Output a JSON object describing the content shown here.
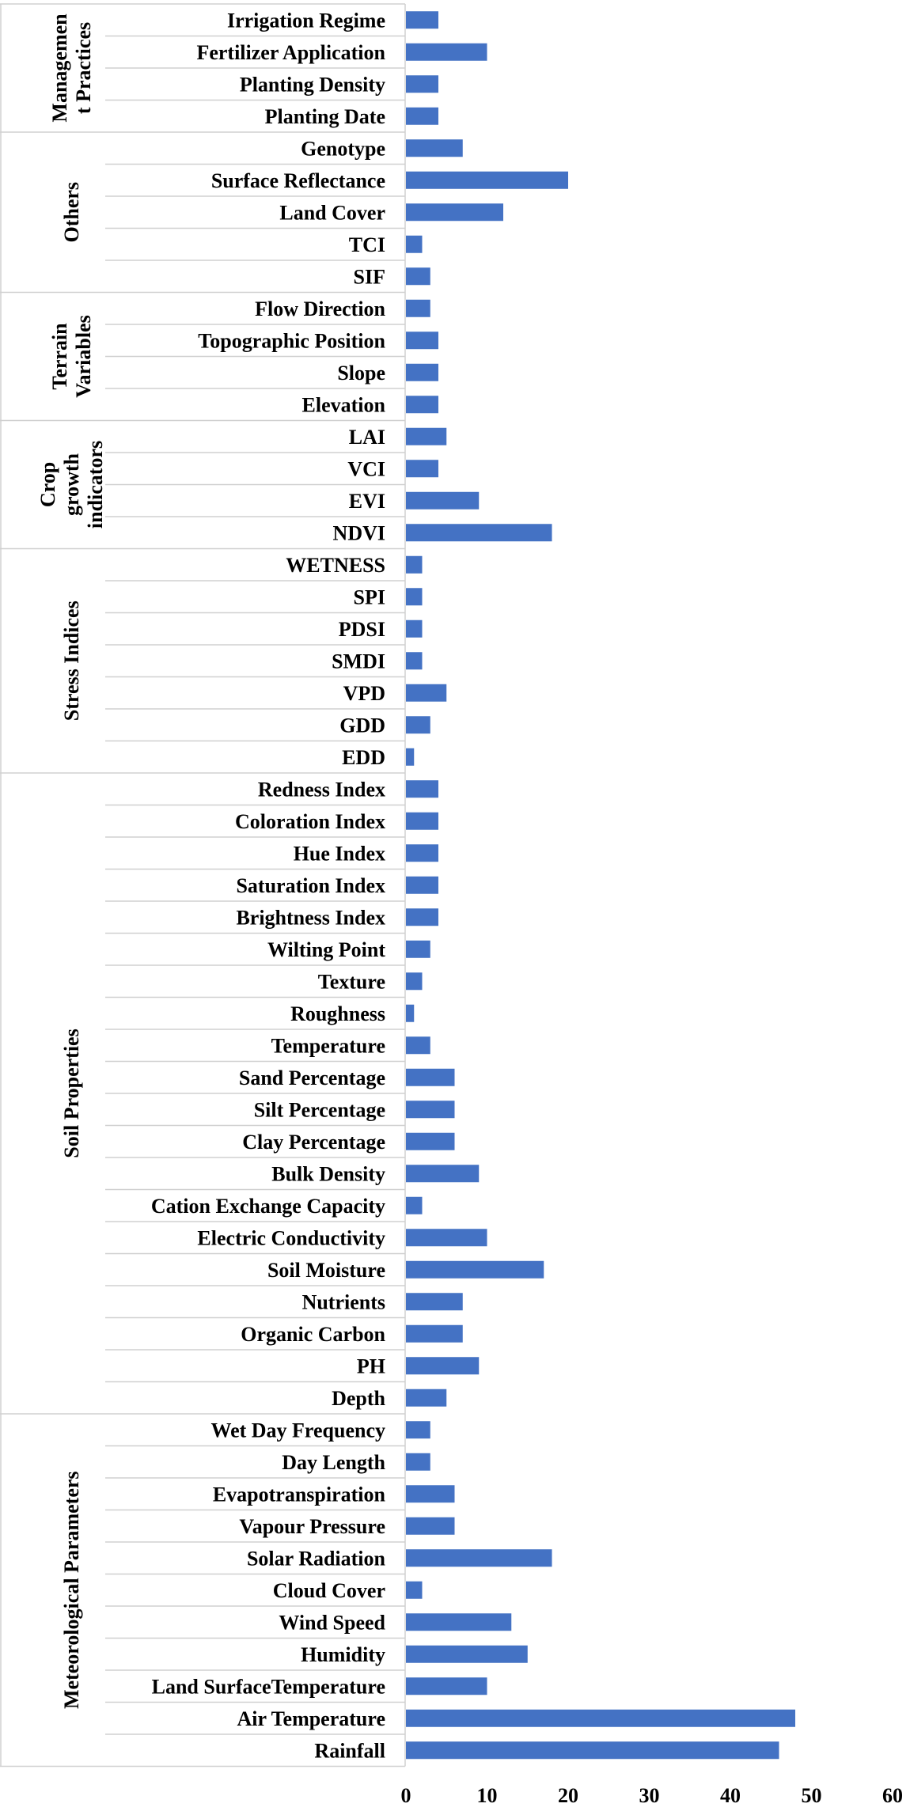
{
  "chart_data": {
    "type": "bar",
    "orientation": "horizontal",
    "xlim": [
      0,
      60
    ],
    "xticks": [
      "0",
      "10",
      "20",
      "30",
      "40",
      "50",
      "60"
    ],
    "bar_color": "#4472c4",
    "groups": [
      {
        "name": "Managemen\nt Practices",
        "categories": [
          "Irrigation Regime",
          "Fertilizer Application",
          "Planting Density",
          "Planting Date"
        ],
        "values": [
          4,
          10,
          4,
          4
        ]
      },
      {
        "name": "Others",
        "categories": [
          "Genotype",
          "Surface Reflectance",
          "Land Cover",
          "TCI",
          "SIF"
        ],
        "values": [
          7,
          20,
          12,
          2,
          3
        ]
      },
      {
        "name": "Terrain\nVariables",
        "categories": [
          "Flow Direction",
          "Topographic Position",
          "Slope",
          "Elevation"
        ],
        "values": [
          3,
          4,
          4,
          4
        ]
      },
      {
        "name": "Crop\ngrowth\nindicators",
        "categories": [
          "LAI",
          "VCI",
          "EVI",
          "NDVI"
        ],
        "values": [
          5,
          4,
          9,
          18
        ]
      },
      {
        "name": "Stress Indices",
        "categories": [
          "WETNESS",
          "SPI",
          "PDSI",
          "SMDI",
          "VPD",
          "GDD",
          "EDD"
        ],
        "values": [
          2,
          2,
          2,
          2,
          5,
          3,
          1
        ]
      },
      {
        "name": "Soil Properties",
        "categories": [
          "Redness Index",
          "Coloration Index",
          "Hue Index",
          "Saturation Index",
          "Brightness Index",
          "Wilting Point",
          "Texture",
          "Roughness",
          "Temperature",
          "Sand Percentage",
          "Silt Percentage",
          "Clay Percentage",
          "Bulk Density",
          "Cation Exchange Capacity",
          "Electric Conductivity",
          "Soil Moisture",
          "Nutrients",
          "Organic Carbon",
          "PH",
          "Depth"
        ],
        "values": [
          4,
          4,
          4,
          4,
          4,
          3,
          2,
          1,
          3,
          6,
          6,
          6,
          9,
          2,
          10,
          17,
          7,
          7,
          9,
          5
        ]
      },
      {
        "name": "Meteorological Parameters",
        "categories": [
          "Wet Day Frequency",
          "Day Length",
          "Evapotranspiration",
          "Vapour Pressure",
          "Solar Radiation",
          "Cloud Cover",
          "Wind Speed",
          "Humidity",
          "Land SurfaceTemperature",
          "Air Temperature",
          "Rainfall"
        ],
        "values": [
          3,
          3,
          6,
          6,
          18,
          2,
          13,
          15,
          10,
          48,
          46
        ]
      }
    ]
  }
}
